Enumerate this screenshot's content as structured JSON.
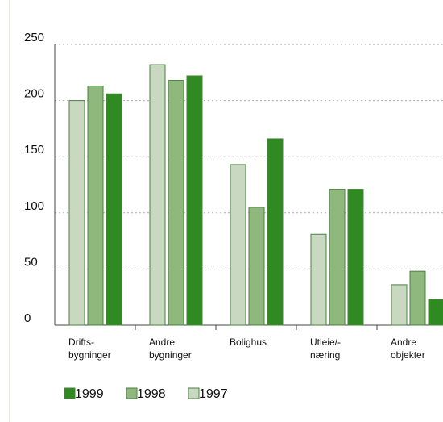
{
  "chart_data": {
    "type": "bar",
    "categories": [
      [
        "Drifts-",
        "bygninger"
      ],
      [
        "Andre",
        "bygninger"
      ],
      [
        "Bolighus"
      ],
      [
        "Utleie/-",
        "næring"
      ],
      [
        "Andre",
        "objekter"
      ]
    ],
    "series": [
      {
        "name": "1997",
        "color": "#c9d9c1",
        "values": [
          200,
          232,
          143,
          81,
          36
        ]
      },
      {
        "name": "1998",
        "color": "#8fb97c",
        "values": [
          213,
          218,
          105,
          121,
          48
        ]
      },
      {
        "name": "1999",
        "color": "#2f8a22",
        "values": [
          206,
          222,
          166,
          121,
          23
        ]
      }
    ],
    "legend_order": [
      2,
      1,
      0
    ],
    "ylim": [
      0,
      250
    ],
    "yticks": [
      0,
      50,
      100,
      150,
      200,
      250
    ],
    "grid": true
  }
}
